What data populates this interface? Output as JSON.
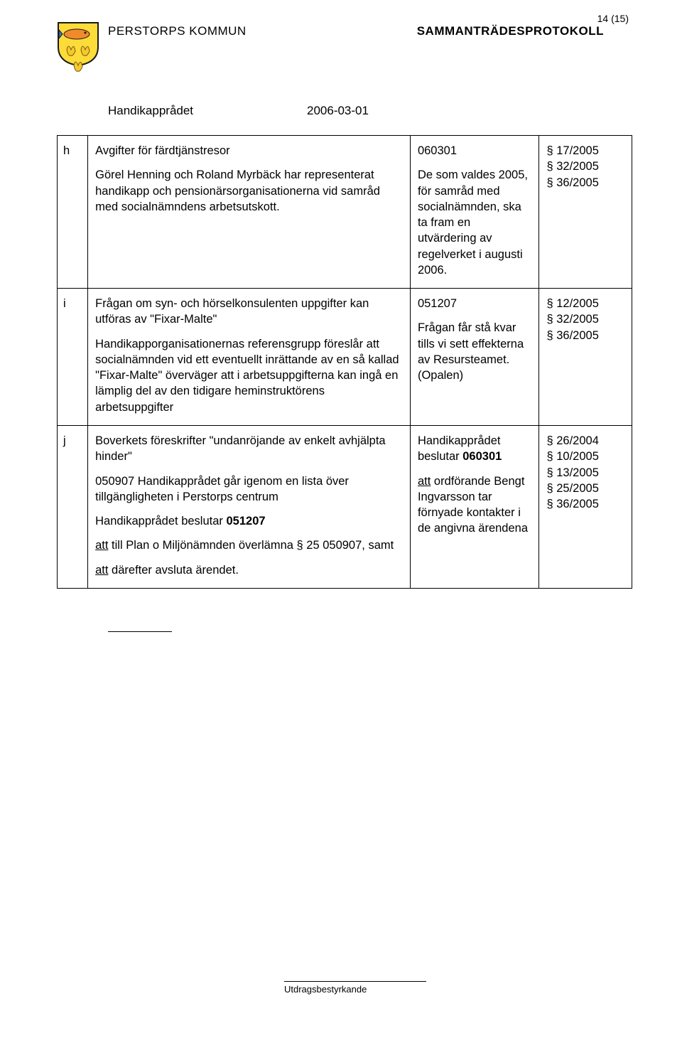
{
  "page_number": "14 (15)",
  "header": {
    "organization": "PERSTORPS KOMMUN",
    "doc_title": "SAMMANTRÄDESPROTOKOLL",
    "committee": "Handikapprådet",
    "date": "2006-03-01"
  },
  "crest_colors": {
    "shield_fill": "#fddc3a",
    "shield_stroke": "#1a1a1a",
    "fish_body": "#f08a2b",
    "fish_accent": "#3a78c9",
    "leaf": "#f3c92e",
    "leaf_stroke": "#7a5a10"
  },
  "rows": [
    {
      "letter": "h",
      "desc_blocks": [
        {
          "html": "Avgifter för färdtjänstresor"
        },
        {
          "html": "Görel Henning och Roland Myrbäck har representerat handikapp och pensionärsorganisationerna vid samråd med socialnämndens arbetsutskott."
        }
      ],
      "status_blocks": [
        {
          "html": "060301"
        },
        {
          "html": "De som valdes 2005, för samråd med socialnämnden, ska ta fram en utvärdering av regelverket i augusti 2006."
        }
      ],
      "refs": [
        "§ 17/2005",
        "§ 32/2005",
        "§ 36/2005"
      ]
    },
    {
      "letter": "i",
      "desc_blocks": [
        {
          "html": "Frågan om syn- och hörselkonsulenten uppgifter kan utföras av \"Fixar-Malte\""
        },
        {
          "html": "Handikapporganisationernas referensgrupp föreslår att socialnämnden vid ett eventuellt inrättande av en så kallad \"Fixar-Malte\" överväger att i arbetsuppgifterna kan ingå en lämplig del av den tidigare heminstruktörens arbetsuppgifter"
        }
      ],
      "status_blocks": [
        {
          "html": "051207"
        },
        {
          "html": "Frågan får stå kvar tills vi sett effekterna av Resursteamet. (Opalen)"
        }
      ],
      "refs": [
        "§ 12/2005",
        "§ 32/2005",
        "§ 36/2005"
      ]
    },
    {
      "letter": "j",
      "desc_blocks": [
        {
          "html": "Boverkets föreskrifter \"undanröjande av enkelt avhjälpta hinder\""
        },
        {
          "html": "050907 Handikapprådet går igenom en lista över tillgängligheten i Perstorps centrum"
        },
        {
          "html": "Handikapprådet beslutar <span class=\"b\">051207</span>"
        },
        {
          "html": "<span class=\"u\">att</span> till Plan o Miljönämnden överlämna § 25 050907, samt"
        },
        {
          "html": "<span class=\"u\">att</span> därefter avsluta ärendet."
        }
      ],
      "status_blocks": [
        {
          "html": "Handikapprådet beslutar <span class=\"b\">060301</span>"
        },
        {
          "html": "<span class=\"u\">att</span> ordförande Bengt Ingvarsson tar förnyade kontakter i de angivna ärendena"
        }
      ],
      "refs": [
        "§ 26/2004",
        "§ 10/2005",
        "§ 13/2005",
        "§ 25/2005",
        "§ 36/2005"
      ]
    }
  ],
  "footer_label": "Utdragsbestyrkande"
}
